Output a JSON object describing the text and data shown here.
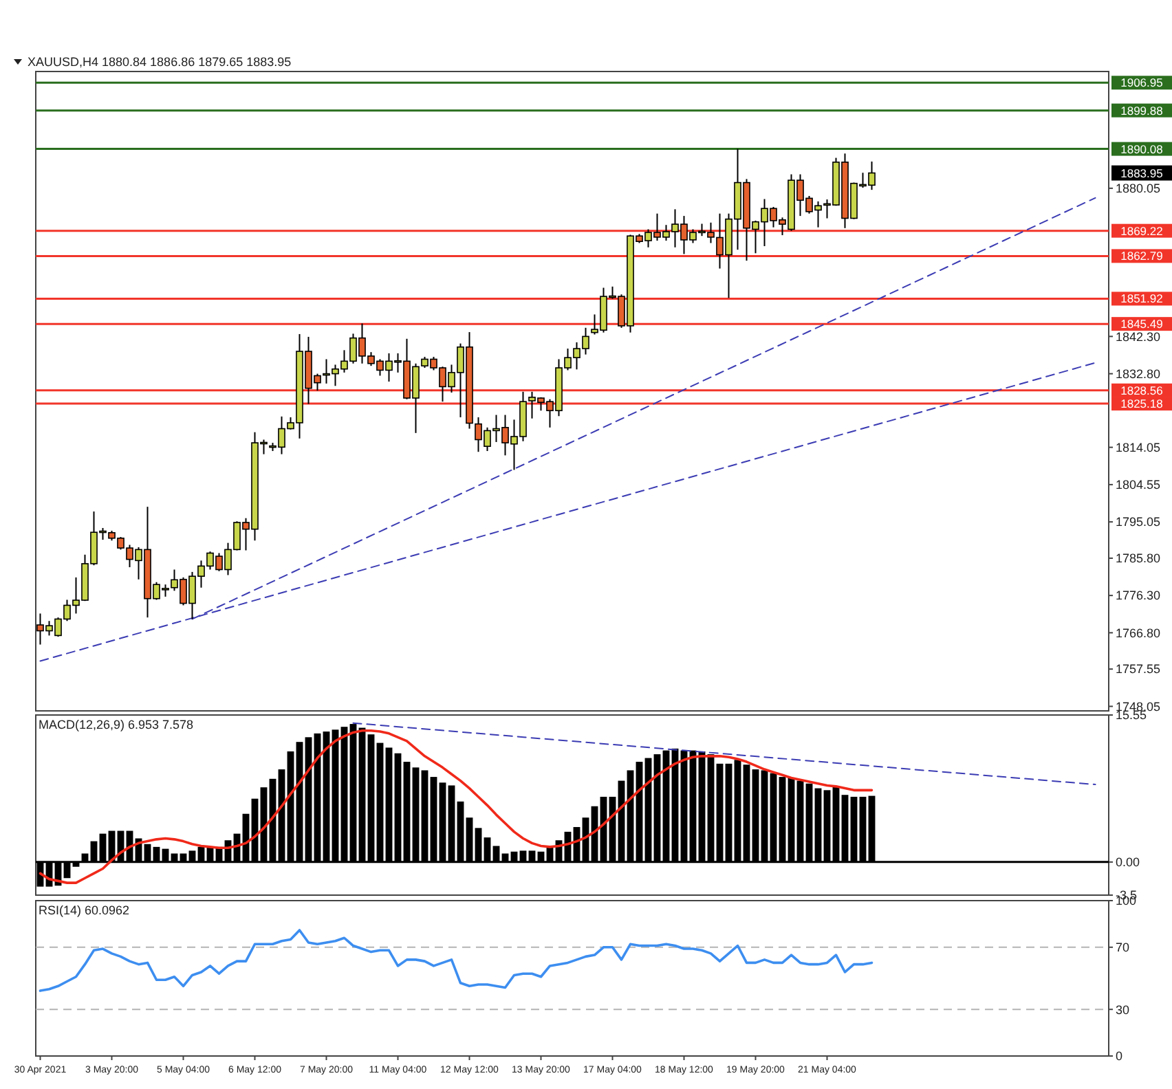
{
  "chart_data": [
    {
      "type": "candlestick",
      "title": "XAUUSD,H4 1880.84 1886.86 1879.65 1883.95",
      "tick_labels": "y",
      "categories": [
        null,
        null,
        null,
        null,
        null,
        null,
        null,
        null,
        null,
        null,
        null,
        null,
        null,
        null,
        null,
        null,
        null,
        null,
        null,
        null,
        null,
        null,
        null,
        null,
        null,
        null,
        null,
        null,
        null,
        null,
        null,
        null,
        null,
        null,
        null,
        null,
        null,
        null,
        null,
        null,
        null,
        null,
        null,
        null,
        null,
        null,
        null,
        null,
        null,
        null,
        null,
        null,
        null,
        null,
        null,
        null,
        null,
        null,
        null,
        null,
        null,
        null,
        null,
        null,
        null,
        null,
        null,
        null,
        null,
        null,
        null,
        null,
        null,
        null,
        null,
        null,
        null,
        null,
        null,
        null,
        null,
        null,
        null,
        null,
        null,
        null,
        null,
        null,
        null,
        null,
        null,
        null,
        null,
        null,
        null,
        null,
        null,
        null,
        null,
        null,
        null,
        null,
        null,
        null,
        null,
        null,
        null,
        null,
        null,
        null,
        null,
        null,
        null,
        null,
        null,
        null,
        null,
        null,
        null,
        null
      ],
      "ohlc": [
        [
          1768.8,
          1771.7,
          1763.8,
          1767.3
        ],
        [
          1767.3,
          1769.8,
          1766.1,
          1768.6
        ],
        [
          1766.1,
          1770.7,
          1765.8,
          1770.3
        ],
        [
          1770.3,
          1775.2,
          1769.8,
          1773.8
        ],
        [
          1773.8,
          1780.9,
          1771.7,
          1775.1
        ],
        [
          1775.1,
          1786.7,
          1774.9,
          1784.4
        ],
        [
          1784.4,
          1797.7,
          1784.0,
          1792.4
        ],
        [
          1792.5,
          1793.5,
          1790.5,
          1792.7
        ],
        [
          1792.3,
          1792.8,
          1790.3,
          1790.9
        ],
        [
          1790.9,
          1791.2,
          1788.0,
          1788.4
        ],
        [
          1788.4,
          1789.2,
          1783.5,
          1785.5
        ],
        [
          1785.2,
          1788.6,
          1780.4,
          1788.0
        ],
        [
          1788.0,
          1798.9,
          1770.7,
          1775.5
        ],
        [
          1775.5,
          1779.7,
          1775.2,
          1779.1
        ],
        [
          1777.9,
          1779.1,
          1776.0,
          1778.1
        ],
        [
          1778.3,
          1782.9,
          1777.5,
          1780.3
        ],
        [
          1780.4,
          1780.9,
          1773.8,
          1774.3
        ],
        [
          1774.3,
          1782.3,
          1770.3,
          1781.2
        ],
        [
          1781.2,
          1785.2,
          1778.3,
          1783.8
        ],
        [
          1783.8,
          1787.5,
          1782.9,
          1787.1
        ],
        [
          1786.3,
          1787.1,
          1782.5,
          1782.9
        ],
        [
          1782.9,
          1789.7,
          1781.5,
          1788.0
        ],
        [
          1788.0,
          1795.2,
          1787.8,
          1794.9
        ],
        [
          1794.9,
          1796.0,
          1787.8,
          1793.2
        ],
        [
          1793.2,
          1817.9,
          1790.3,
          1815.2
        ],
        [
          1815.1,
          1816.0,
          1812.3,
          1815.3
        ],
        [
          1814.3,
          1815.2,
          1813.1,
          1814.4
        ],
        [
          1814.1,
          1821.9,
          1812.3,
          1818.8
        ],
        [
          1818.8,
          1821.7,
          1818.6,
          1820.3
        ],
        [
          1820.3,
          1842.9,
          1816.3,
          1838.5
        ],
        [
          1838.5,
          1842.2,
          1825.1,
          1829.1
        ],
        [
          1832.3,
          1832.8,
          1828.5,
          1830.5
        ],
        [
          1832.7,
          1836.5,
          1830.3,
          1832.8
        ],
        [
          1832.8,
          1835.1,
          1829.7,
          1834.0
        ],
        [
          1834.0,
          1838.8,
          1833.1,
          1836.0
        ],
        [
          1836.0,
          1843.0,
          1835.4,
          1841.9
        ],
        [
          1841.9,
          1845.6,
          1835.4,
          1837.3
        ],
        [
          1837.3,
          1838.3,
          1834.8,
          1835.4
        ],
        [
          1836.0,
          1836.5,
          1832.3,
          1833.7
        ],
        [
          1833.7,
          1838.0,
          1830.8,
          1836.0
        ],
        [
          1836.0,
          1838.0,
          1833.1,
          1836.1
        ],
        [
          1836.0,
          1841.7,
          1826.3,
          1826.6
        ],
        [
          1826.6,
          1835.4,
          1817.7,
          1834.6
        ],
        [
          1834.8,
          1837.1,
          1834.3,
          1836.5
        ],
        [
          1836.5,
          1837.1,
          1833.7,
          1834.3
        ],
        [
          1834.3,
          1834.6,
          1825.7,
          1829.5
        ],
        [
          1829.5,
          1835.1,
          1828.0,
          1833.1
        ],
        [
          1833.1,
          1840.5,
          1821.7,
          1839.6
        ],
        [
          1839.6,
          1843.4,
          1818.8,
          1820.2
        ],
        [
          1820.0,
          1821.7,
          1812.9,
          1816.0
        ],
        [
          1814.3,
          1819.1,
          1813.1,
          1818.3
        ],
        [
          1818.3,
          1822.3,
          1815.4,
          1818.8
        ],
        [
          1819.1,
          1822.3,
          1812.0,
          1815.2
        ],
        [
          1814.9,
          1821.1,
          1808.3,
          1816.8
        ],
        [
          1816.8,
          1828.2,
          1815.6,
          1825.7
        ],
        [
          1825.9,
          1828.2,
          1821.4,
          1826.8
        ],
        [
          1826.6,
          1826.8,
          1823.4,
          1825.5
        ],
        [
          1825.7,
          1826.3,
          1819.1,
          1823.4
        ],
        [
          1823.4,
          1836.5,
          1822.0,
          1834.3
        ],
        [
          1834.3,
          1839.2,
          1833.7,
          1836.9
        ],
        [
          1836.9,
          1840.8,
          1833.9,
          1839.2
        ],
        [
          1839.2,
          1844.5,
          1837.7,
          1842.3
        ],
        [
          1843.3,
          1847.9,
          1842.8,
          1844.1
        ],
        [
          1843.9,
          1854.7,
          1843.3,
          1852.5
        ],
        [
          1852.4,
          1855.0,
          1851.9,
          1852.6
        ],
        [
          1852.5,
          1853.0,
          1844.5,
          1845.0
        ],
        [
          1845.0,
          1868.2,
          1843.3,
          1867.9
        ],
        [
          1867.9,
          1868.4,
          1866.1,
          1866.5
        ],
        [
          1866.7,
          1869.6,
          1865.0,
          1868.8
        ],
        [
          1868.8,
          1873.6,
          1866.7,
          1867.6
        ],
        [
          1867.6,
          1870.7,
          1866.7,
          1869.0
        ],
        [
          1869.0,
          1874.7,
          1865.0,
          1870.9
        ],
        [
          1870.9,
          1873.0,
          1863.3,
          1866.9
        ],
        [
          1866.9,
          1869.6,
          1866.1,
          1868.8
        ],
        [
          1869.0,
          1871.0,
          1867.9,
          1869.1
        ],
        [
          1868.8,
          1871.3,
          1866.1,
          1867.6
        ],
        [
          1867.5,
          1873.6,
          1859.6,
          1863.1
        ],
        [
          1863.1,
          1873.6,
          1852.1,
          1872.2
        ],
        [
          1872.2,
          1890.1,
          1864.4,
          1881.5
        ],
        [
          1881.5,
          1882.4,
          1861.6,
          1869.9
        ],
        [
          1869.6,
          1871.8,
          1863.5,
          1871.5
        ],
        [
          1871.5,
          1877.3,
          1865.3,
          1874.9
        ],
        [
          1874.9,
          1875.3,
          1870.1,
          1871.8
        ],
        [
          1872.0,
          1872.6,
          1868.1,
          1870.9
        ],
        [
          1869.6,
          1883.6,
          1869.2,
          1882.1
        ],
        [
          1882.1,
          1883.6,
          1873.0,
          1877.0
        ],
        [
          1877.5,
          1878.1,
          1873.6,
          1874.1
        ],
        [
          1874.5,
          1876.7,
          1870.1,
          1875.6
        ],
        [
          1876.0,
          1877.2,
          1872.4,
          1876.1
        ],
        [
          1875.8,
          1887.8,
          1875.6,
          1886.7
        ],
        [
          1886.7,
          1888.9,
          1869.9,
          1872.4
        ],
        [
          1872.4,
          1881.5,
          1872.2,
          1881.3
        ],
        [
          1880.8,
          1884.0,
          1880.2,
          1881.0
        ],
        [
          1880.84,
          1886.86,
          1879.65,
          1883.95
        ],
        null,
        null,
        null,
        null,
        null,
        null,
        null,
        null,
        null,
        null,
        null,
        null,
        null,
        null,
        null,
        null,
        null,
        null,
        null,
        null,
        null,
        null,
        null,
        null,
        null,
        null
      ],
      "colors": [
        "#e5612d",
        "#c8d64b",
        "#c8d64b",
        "#c8d64b",
        "#c8d64b",
        "#c8d64b",
        "#c8d64b",
        "#c8d64b",
        "#e5612d",
        "#e5612d",
        "#e5612d",
        "#c8d64b",
        "#e5612d",
        "#c8d64b",
        "#c8d64b",
        "#c8d64b",
        "#e5612d",
        "#c8d64b",
        "#c8d64b",
        "#c8d64b",
        "#e5612d",
        "#c8d64b",
        "#c8d64b",
        "#e5612d",
        "#c8d64b",
        "#c8d64b",
        "#c8d64b",
        "#c8d64b",
        "#c8d64b",
        "#c8d64b",
        "#e5612d",
        "#e5612d",
        "#c8d64b",
        "#c8d64b",
        "#c8d64b",
        "#c8d64b",
        "#e5612d",
        "#e5612d",
        "#e5612d",
        "#c8d64b",
        "#c8d64b",
        "#e5612d",
        "#c8d64b",
        "#c8d64b",
        "#e5612d",
        "#e5612d",
        "#c8d64b",
        "#c8d64b",
        "#e5612d",
        "#e5612d",
        "#c8d64b",
        "#c8d64b",
        "#e5612d",
        "#c8d64b",
        "#c8d64b",
        "#c8d64b",
        "#e5612d",
        "#e5612d",
        "#c8d64b",
        "#c8d64b",
        "#c8d64b",
        "#c8d64b",
        "#c8d64b",
        "#c8d64b",
        "#c8d64b",
        "#e5612d",
        "#c8d64b",
        "#e5612d",
        "#c8d64b",
        "#e5612d",
        "#c8d64b",
        "#c8d64b",
        "#e5612d",
        "#c8d64b",
        "#c8d64b",
        "#e5612d",
        "#e5612d",
        "#c8d64b",
        "#c8d64b",
        "#e5612d",
        "#c8d64b",
        "#c8d64b",
        "#e5612d",
        "#e5612d",
        "#c8d64b",
        "#e5612d",
        "#e5612d",
        "#c8d64b",
        "#c8d64b",
        "#c8d64b",
        "#e5612d",
        "#c8d64b",
        "#c8d64b",
        "#c8d64b",
        null,
        null,
        null,
        null,
        null,
        null,
        null,
        null,
        null,
        null,
        null,
        null,
        null,
        null,
        null,
        null,
        null,
        null,
        null,
        null,
        null,
        null,
        null,
        null,
        null,
        null
      ],
      "series": [
        {
          "type": "line",
          "color": "#3c3cb4",
          "line_style": "dashed",
          "values": [
            null,
            null,
            null,
            null,
            null,
            null,
            null,
            null,
            null,
            null,
            null,
            null,
            null,
            null,
            null,
            null,
            null,
            1770.3,
            null,
            null,
            null,
            null,
            null,
            null,
            null,
            null,
            null,
            null,
            null,
            null,
            null,
            null,
            null,
            null,
            null,
            null,
            null,
            null,
            null,
            null,
            null,
            null,
            null,
            null,
            null,
            null,
            null,
            null,
            null,
            null,
            null,
            null,
            null,
            null,
            null,
            null,
            null,
            null,
            null,
            null,
            null,
            null,
            null,
            null,
            null,
            null,
            null,
            null,
            null,
            null,
            null,
            null,
            null,
            null,
            null,
            null,
            null,
            null,
            null,
            null,
            null,
            null,
            null,
            null,
            null,
            null,
            null,
            null,
            null,
            null,
            null,
            null,
            null,
            null,
            null,
            null,
            null,
            null,
            null,
            null,
            null,
            null,
            null,
            null,
            null,
            null,
            null,
            null,
            null,
            null,
            null,
            null,
            null,
            null,
            null,
            null,
            null,
            null,
            1877.6,
            null
          ]
        },
        {
          "type": "line",
          "color": "#3c3cb4",
          "line_style": "dashed",
          "values": [
            1759.6,
            null,
            null,
            null,
            null,
            null,
            null,
            null,
            null,
            null,
            null,
            null,
            null,
            null,
            null,
            null,
            null,
            null,
            null,
            null,
            null,
            null,
            null,
            null,
            null,
            null,
            null,
            null,
            null,
            null,
            null,
            null,
            null,
            null,
            null,
            null,
            null,
            null,
            null,
            null,
            null,
            null,
            null,
            null,
            null,
            null,
            null,
            null,
            null,
            null,
            null,
            null,
            null,
            null,
            null,
            null,
            null,
            null,
            null,
            null,
            null,
            null,
            null,
            null,
            null,
            null,
            null,
            null,
            null,
            null,
            null,
            null,
            null,
            null,
            null,
            null,
            null,
            null,
            null,
            null,
            null,
            null,
            null,
            null,
            null,
            null,
            null,
            null,
            null,
            null,
            null,
            null,
            null,
            null,
            null,
            null,
            null,
            null,
            null,
            null,
            null,
            null,
            null,
            null,
            null,
            null,
            null,
            null,
            null,
            null,
            null,
            null,
            null,
            null,
            null,
            null,
            null,
            null,
            1835.6,
            null
          ]
        }
      ],
      "ylim": [
        1746.9,
        1909.8
      ],
      "yticks": [
        1748.05,
        1757.55,
        {
          "value": 1766.8,
          "label": "1766.80"
        },
        {
          "value": 1776.3,
          "label": "1776.30"
        },
        {
          "value": 1785.8,
          "label": "1785.80"
        },
        1795.05,
        1804.55,
        1814.05,
        {
          "value": 1832.8,
          "label": "1832.80"
        },
        {
          "value": 1842.3,
          "label": "1842.30"
        },
        1880.05
      ],
      "ref_lines": [
        {
          "axis": "y",
          "value": 1906.95,
          "label": "1906.95",
          "color": "#2a6e1e"
        },
        {
          "axis": "y",
          "value": 1899.88,
          "label": "1899.88",
          "color": "#2a6e1e"
        },
        {
          "axis": "y",
          "value": 1890.08,
          "label": "1890.08",
          "color": "#2a6e1e"
        },
        {
          "axis": "y",
          "value": 1869.22,
          "label": "1869.22",
          "color": "#f2352a"
        },
        {
          "axis": "y",
          "value": 1862.79,
          "label": "1862.79",
          "color": "#f2352a"
        },
        {
          "axis": "y",
          "value": 1851.92,
          "label": "1851.92",
          "color": "#f2352a"
        },
        {
          "axis": "y",
          "value": 1845.49,
          "label": "1845.49",
          "color": "#f2352a"
        },
        {
          "axis": "y",
          "value": 1828.56,
          "label": "1828.56",
          "color": "#f2352a"
        },
        {
          "axis": "y",
          "value": 1825.18,
          "label": "1825.18",
          "color": "#f2352a"
        }
      ],
      "annotations": [
        "1883.95"
      ]
    },
    {
      "type": "bar",
      "title": "MACD(12,26,9) 6.953 7.578",
      "tick_labels": "y",
      "categories": [
        null,
        null,
        null,
        null,
        null,
        null,
        null,
        null,
        null,
        null,
        null,
        null,
        null,
        null,
        null,
        null,
        null,
        null,
        null,
        null,
        null,
        null,
        null,
        null,
        null,
        null,
        null,
        null,
        null,
        null,
        null,
        null,
        null,
        null,
        null,
        null,
        null,
        null,
        null,
        null,
        null,
        null,
        null,
        null,
        null,
        null,
        null,
        null,
        null,
        null,
        null,
        null,
        null,
        null,
        null,
        null,
        null,
        null,
        null,
        null,
        null,
        null,
        null,
        null,
        null,
        null,
        null,
        null,
        null,
        null,
        null,
        null,
        null,
        null,
        null,
        null,
        null,
        null,
        null,
        null,
        null,
        null,
        null,
        null,
        null,
        null,
        null,
        null,
        null,
        null,
        null,
        null,
        null,
        null,
        null,
        null,
        null,
        null,
        null,
        null,
        null,
        null,
        null,
        null,
        null,
        null,
        null,
        null,
        null,
        null,
        null,
        null,
        null,
        null,
        null,
        null,
        null,
        null,
        null,
        null
      ],
      "series": [
        {
          "type": "bar",
          "color": "#000000",
          "values": [
            -2.6,
            -2.6,
            -2.5,
            -1.7,
            -0.5,
            0.9,
            2.2,
            3.0,
            3.3,
            3.3,
            3.3,
            2.5,
            1.9,
            1.6,
            1.4,
            0.9,
            0.9,
            1.2,
            1.6,
            1.6,
            1.6,
            2.3,
            3.0,
            5.1,
            6.7,
            7.9,
            8.8,
            9.8,
            11.7,
            12.7,
            13.2,
            13.6,
            13.8,
            14.0,
            14.3,
            14.6,
            14.2,
            13.5,
            12.6,
            12.1,
            11.5,
            10.6,
            10.0,
            9.7,
            9.0,
            8.4,
            8.1,
            6.4,
            4.7,
            3.6,
            2.6,
            1.7,
            0.9,
            1.1,
            1.2,
            1.2,
            1.1,
            1.6,
            2.3,
            3.2,
            3.7,
            4.7,
            5.9,
            6.9,
            6.9,
            8.6,
            9.7,
            10.6,
            11.0,
            11.4,
            11.8,
            12.0,
            11.8,
            11.8,
            11.7,
            11.4,
            10.4,
            10.4,
            10.8,
            10.3,
            9.8,
            9.7,
            9.4,
            9.0,
            8.9,
            8.6,
            8.3,
            7.8,
            7.6,
            8.0,
            7.1,
            6.9,
            6.9,
            7.0,
            null,
            null,
            null,
            null,
            null,
            null,
            null,
            null,
            null,
            null,
            null,
            null,
            null,
            null,
            null,
            null,
            null,
            null,
            null,
            null,
            null,
            null,
            null,
            null,
            null,
            null
          ]
        },
        {
          "type": "line",
          "color": "#f0291a",
          "values": [
            -1.2,
            -1.8,
            -2.0,
            -2.2,
            -2.2,
            -1.7,
            -1.2,
            -0.7,
            0.2,
            1.0,
            1.6,
            2.0,
            2.2,
            2.4,
            2.5,
            2.4,
            2.2,
            1.9,
            1.7,
            1.6,
            1.5,
            1.5,
            1.7,
            2.0,
            2.7,
            3.6,
            4.7,
            5.9,
            7.2,
            8.4,
            9.7,
            11.0,
            12.0,
            12.8,
            13.3,
            13.7,
            13.9,
            13.9,
            13.8,
            13.6,
            13.2,
            12.8,
            12.0,
            11.2,
            10.6,
            10.0,
            9.3,
            8.6,
            7.8,
            6.9,
            6.0,
            5.0,
            4.1,
            3.2,
            2.5,
            2.0,
            1.7,
            1.6,
            1.7,
            1.9,
            2.2,
            2.6,
            3.2,
            4.0,
            4.9,
            5.8,
            6.7,
            7.6,
            8.4,
            9.2,
            9.8,
            10.4,
            10.8,
            11.1,
            11.2,
            11.2,
            11.2,
            11.1,
            10.9,
            10.6,
            10.2,
            9.8,
            9.5,
            9.2,
            8.9,
            8.7,
            8.5,
            8.3,
            8.1,
            8.0,
            7.8,
            7.6,
            7.6,
            7.6,
            null,
            null,
            null,
            null,
            null,
            null,
            null,
            null,
            null,
            null,
            null,
            null,
            null,
            null,
            null,
            null,
            null,
            null,
            null,
            null,
            null,
            null,
            null,
            null,
            null,
            null
          ]
        },
        {
          "type": "line",
          "color": "#3c3cb4",
          "line_style": "dashed",
          "values": [
            null,
            null,
            null,
            null,
            null,
            null,
            null,
            null,
            null,
            null,
            null,
            null,
            null,
            null,
            null,
            null,
            null,
            null,
            null,
            null,
            null,
            null,
            null,
            null,
            null,
            null,
            null,
            null,
            null,
            null,
            null,
            null,
            null,
            null,
            null,
            14.7,
            null,
            null,
            null,
            null,
            null,
            null,
            null,
            null,
            null,
            null,
            null,
            null,
            null,
            null,
            null,
            null,
            null,
            null,
            null,
            null,
            null,
            null,
            null,
            null,
            null,
            null,
            null,
            null,
            null,
            null,
            null,
            null,
            null,
            null,
            null,
            null,
            null,
            null,
            null,
            null,
            null,
            null,
            null,
            null,
            null,
            null,
            null,
            null,
            null,
            null,
            null,
            null,
            null,
            null,
            null,
            null,
            null,
            null,
            null,
            null,
            null,
            null,
            null,
            null,
            null,
            null,
            null,
            null,
            null,
            null,
            null,
            null,
            null,
            null,
            null,
            null,
            null,
            null,
            null,
            null,
            null,
            null,
            8.2,
            null
          ]
        }
      ],
      "ylim": [
        -3.5,
        15.55
      ],
      "yticks": [
        -3.5,
        {
          "value": 0,
          "label": "0.00"
        },
        15.55
      ],
      "ref_lines": [
        {
          "axis": "y",
          "value": 0,
          "color": "#000000"
        }
      ]
    },
    {
      "type": "line",
      "title": "RSI(14) 60.0962",
      "categories": [
        "30 Apr 2021",
        null,
        null,
        null,
        null,
        null,
        null,
        null,
        "3 May 20:00",
        null,
        null,
        null,
        null,
        null,
        null,
        null,
        "5 May 04:00",
        null,
        null,
        null,
        null,
        null,
        null,
        null,
        "6 May 12:00",
        null,
        null,
        null,
        null,
        null,
        null,
        null,
        "7 May 20:00",
        null,
        null,
        null,
        null,
        null,
        null,
        null,
        "11 May 04:00",
        null,
        null,
        null,
        null,
        null,
        null,
        null,
        "12 May 12:00",
        null,
        null,
        null,
        null,
        null,
        null,
        null,
        "13 May 20:00",
        null,
        null,
        null,
        null,
        null,
        null,
        null,
        "17 May 04:00",
        null,
        null,
        null,
        null,
        null,
        null,
        null,
        "18 May 12:00",
        null,
        null,
        null,
        null,
        null,
        null,
        null,
        "19 May 20:00",
        null,
        null,
        null,
        null,
        null,
        null,
        null,
        "21 May 04:00",
        null,
        null,
        null,
        null,
        null,
        null,
        null,
        null,
        null,
        null,
        null,
        null,
        null,
        null,
        null,
        null,
        null,
        null,
        null,
        null,
        null,
        null,
        null,
        null,
        null,
        null,
        null,
        null,
        null,
        null,
        null
      ],
      "series": [
        {
          "color": "#3d8ef0",
          "values": [
            42,
            43,
            45,
            48,
            51,
            59,
            68,
            69,
            66,
            64,
            61,
            59,
            60,
            49,
            49,
            51,
            45,
            52,
            54,
            58,
            53,
            58,
            61,
            61,
            72,
            72,
            72,
            74,
            75,
            81,
            73,
            72,
            73,
            74,
            76,
            71,
            69,
            67,
            68,
            68,
            58,
            62,
            62,
            61,
            58,
            60,
            62,
            47,
            45,
            46,
            46,
            45,
            44,
            52,
            53,
            53,
            51,
            58,
            59,
            60,
            62,
            64,
            65,
            70,
            70,
            62,
            72,
            71,
            71,
            71,
            72,
            71,
            69,
            69,
            68,
            66,
            61,
            66,
            71,
            60,
            60,
            62,
            60,
            60,
            65,
            60,
            59,
            59,
            60,
            65,
            54,
            59,
            59,
            60,
            null,
            null,
            null,
            null,
            null,
            null,
            null,
            null,
            null,
            null,
            null,
            null,
            null,
            null,
            null,
            null,
            null,
            null,
            null,
            null,
            null,
            null,
            null,
            null,
            null,
            null
          ]
        }
      ],
      "ylim": [
        0,
        100
      ],
      "yticks": [
        0,
        30,
        70,
        100
      ],
      "ref_lines": [
        {
          "axis": "y",
          "value": 70,
          "color": "#b4b4b4",
          "line_style": "dashed"
        },
        {
          "axis": "y",
          "value": 30,
          "color": "#b4b4b4",
          "line_style": "dashed"
        }
      ]
    }
  ]
}
